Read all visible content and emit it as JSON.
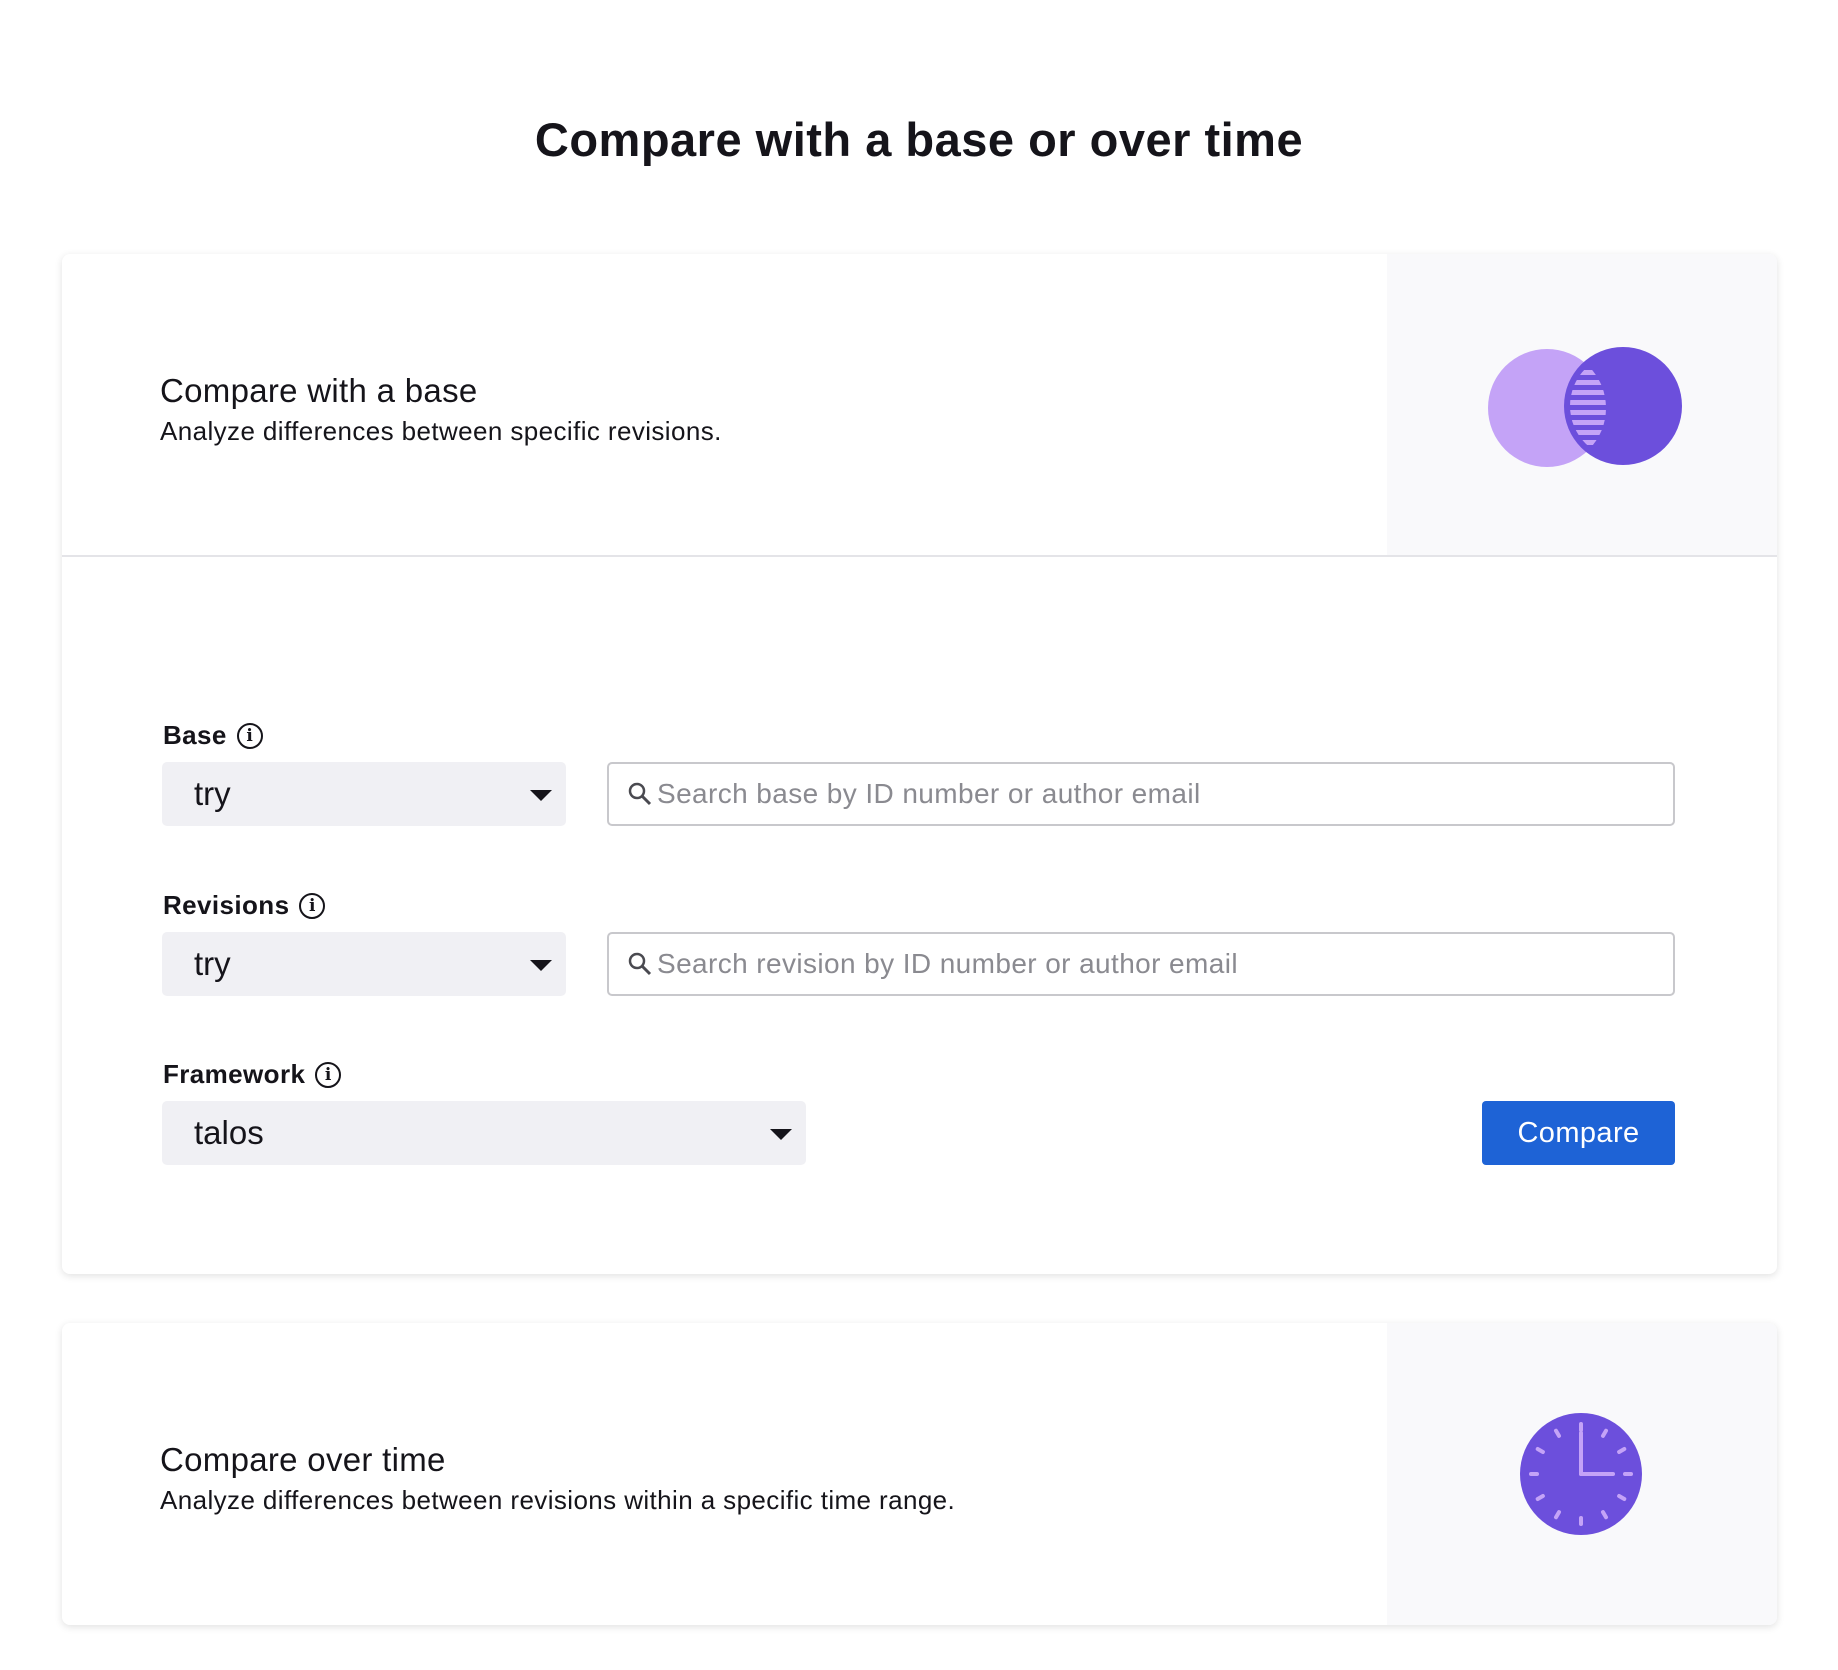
{
  "page": {
    "title": "Compare with a base or over time"
  },
  "base_card": {
    "title": "Compare with a base",
    "description": "Analyze differences between specific revisions.",
    "icon": "venn-diagram-icon",
    "base": {
      "label": "Base",
      "repository": "try",
      "search_placeholder": "Search base by ID number or author email"
    },
    "revisions": {
      "label": "Revisions",
      "repository": "try",
      "search_placeholder": "Search revision by ID number or author email"
    },
    "framework": {
      "label": "Framework",
      "value": "talos"
    },
    "compare_label": "Compare"
  },
  "time_card": {
    "title": "Compare over time",
    "description": "Analyze differences between revisions within a specific time range.",
    "icon": "clock-icon"
  },
  "colors": {
    "accent": "#1e63d6",
    "purple": "#6c4fdc",
    "light_purple": "#c4a3f7"
  }
}
